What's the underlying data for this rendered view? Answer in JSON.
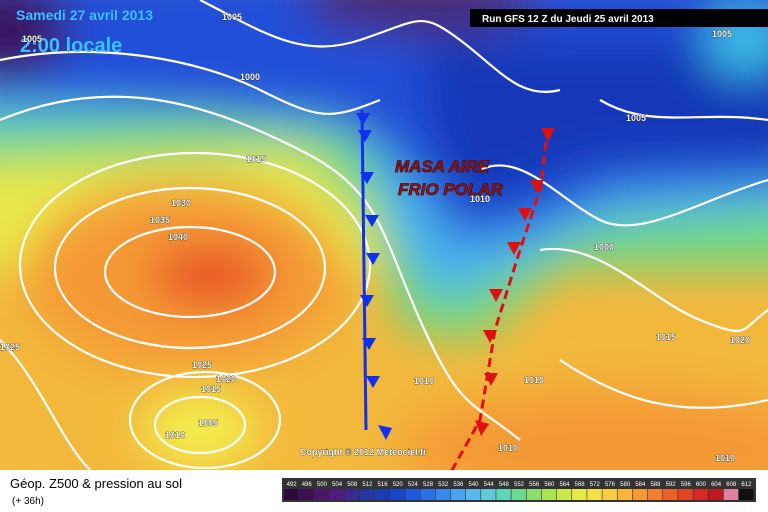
{
  "header": {
    "date": "Samedi 27 avril 2013",
    "time": "2:00 locale",
    "run": "Run GFS 12 Z du Jeudi 25 avril 2013"
  },
  "annotation": {
    "line1": "MASA AIRE",
    "line2": "FRIO POLAR"
  },
  "isobar_labels": [
    1005,
    1005,
    1000,
    1015,
    1030,
    1035,
    1040,
    1025,
    1025,
    1020,
    1015,
    1010,
    1005,
    1010,
    1000,
    1015,
    1020,
    1010,
    1010,
    1010,
    1010,
    1005,
    1005
  ],
  "copyright": "Copyright © 2012 Meteociel.fr",
  "legend": {
    "title": "Géop. Z500 & pression au sol",
    "lead": "(+ 36h)",
    "scale": {
      "values": [
        492,
        496,
        500,
        504,
        508,
        512,
        516,
        520,
        524,
        528,
        532,
        536,
        540,
        544,
        548,
        552,
        556,
        560,
        564,
        568,
        572,
        576,
        580,
        584,
        588,
        592,
        596,
        600,
        604,
        608,
        612
      ],
      "colors": [
        "#2c0a3c",
        "#3c0f52",
        "#4a1668",
        "#501c80",
        "#3a2a8e",
        "#2436a0",
        "#1a3cb4",
        "#1848c8",
        "#1e5adc",
        "#2a70e6",
        "#3a88ee",
        "#4aa2f0",
        "#5ab8ea",
        "#60cad8",
        "#5ed4b8",
        "#6cd890",
        "#8ade6c",
        "#aae456",
        "#cae84a",
        "#e6ea48",
        "#f6e04a",
        "#f8cc44",
        "#f8b43c",
        "#f49a34",
        "#f07e2e",
        "#ea6028",
        "#e24424",
        "#d42a22",
        "#c0181e",
        "#e080a0",
        "#101010"
      ]
    }
  }
}
